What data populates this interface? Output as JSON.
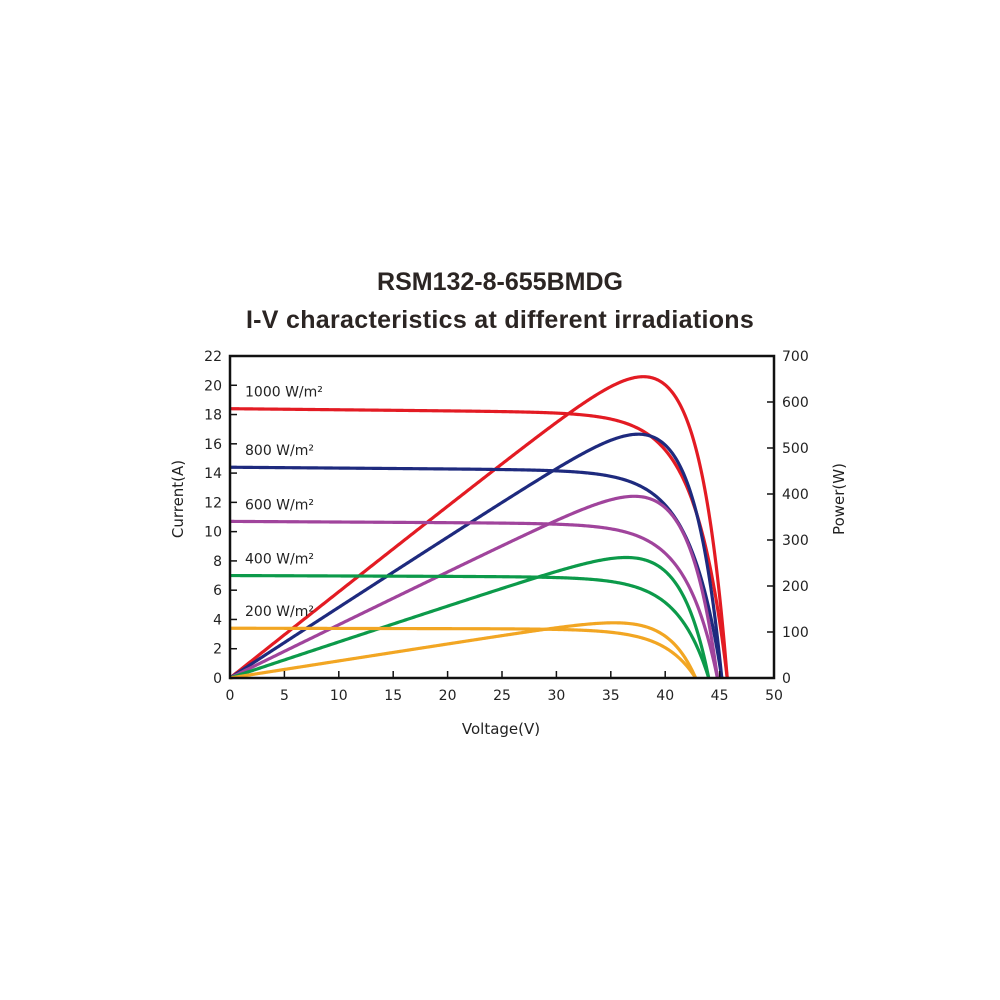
{
  "chart_data": {
    "type": "line",
    "title": "RSM132-8-655BMDG",
    "subtitle": "I-V characteristics at different irradiations",
    "xlabel": "Voltage(V)",
    "ylabel_left": "Current(A)",
    "ylabel_right": "Power(W)",
    "xlim": [
      0,
      50
    ],
    "ylim_left": [
      0,
      22
    ],
    "ylim_right": [
      0,
      700
    ],
    "x_ticks": [
      "0",
      "5",
      "10",
      "15",
      "20",
      "25",
      "30",
      "35",
      "40",
      "45",
      "50"
    ],
    "y_ticks_left": [
      "0",
      "2",
      "4",
      "6",
      "8",
      "10",
      "12",
      "14",
      "16",
      "18",
      "20",
      "22"
    ],
    "y_ticks_right": [
      "0",
      "100",
      "200",
      "300",
      "400",
      "500",
      "600",
      "700"
    ],
    "grid": false,
    "series": [
      {
        "name": "1000 W/m²",
        "color": "#e31b23",
        "isc": 18.4,
        "voc": 45.7,
        "vmp": 37.0,
        "imp": 17.6,
        "pmax": 655
      },
      {
        "name": "800 W/m²",
        "color": "#1e2a7e",
        "isc": 14.4,
        "voc": 45.2,
        "vmp": 37.0,
        "imp": 13.9,
        "pmax": 530
      },
      {
        "name": "600 W/m²",
        "color": "#a0449c",
        "isc": 10.7,
        "voc": 44.8,
        "vmp": 37.0,
        "imp": 10.4,
        "pmax": 395
      },
      {
        "name": "400 W/m²",
        "color": "#0c9a4a",
        "isc": 7.0,
        "voc": 44.0,
        "vmp": 36.5,
        "imp": 6.8,
        "pmax": 262
      },
      {
        "name": "200 W/m²",
        "color": "#f2a623",
        "isc": 3.4,
        "voc": 42.8,
        "vmp": 36.0,
        "imp": 3.2,
        "pmax": 120
      }
    ]
  }
}
